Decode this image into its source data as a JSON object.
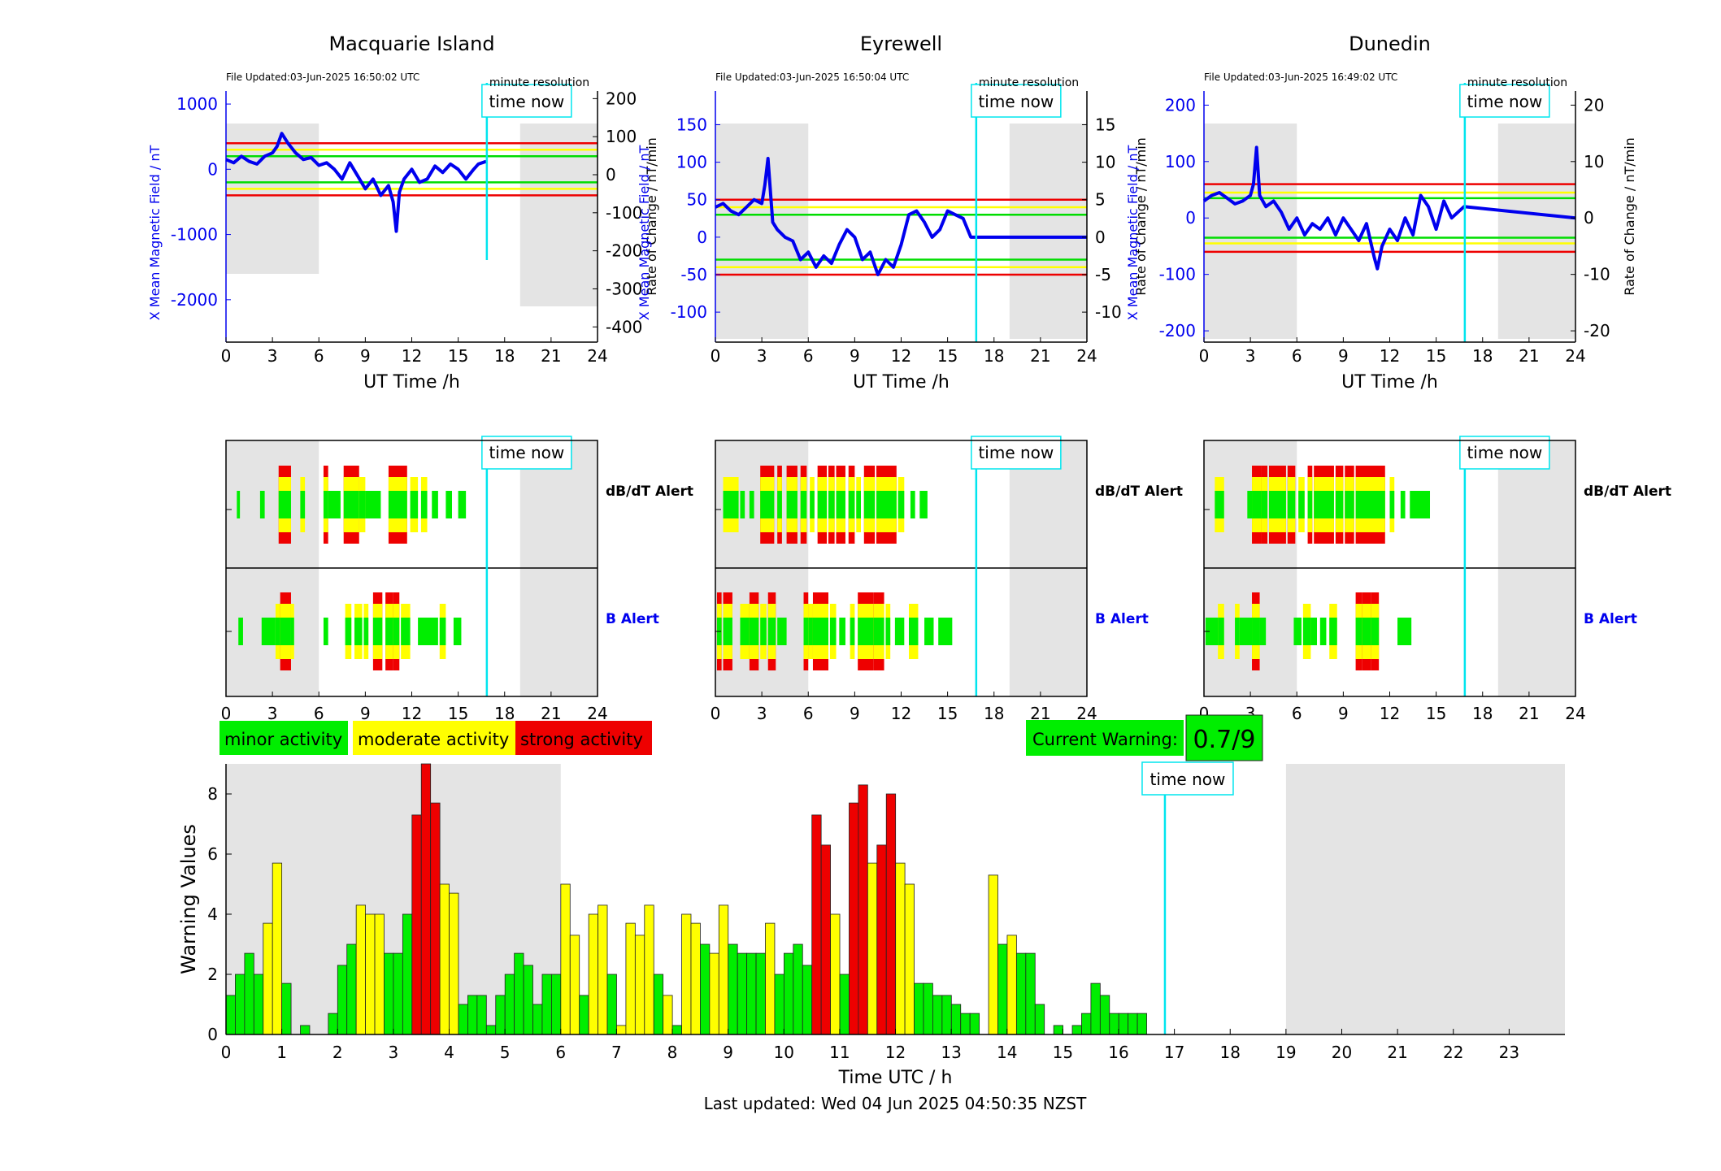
{
  "colors": {
    "minor": "#00ee00",
    "moderate": "#ffff00",
    "strong": "#ee0000",
    "field": "#0000ee",
    "time_now": "#00e5ee",
    "shade": "#e4e4e4",
    "threshold_red": "#ee0000",
    "threshold_yellow": "#ffff00",
    "threshold_green": "#00dd00"
  },
  "stations": [
    {
      "name": "Macquarie Island",
      "file_updated": "File Updated:03-Jun-2025 16:50:02 UTC",
      "resolution": "minute resolution",
      "time_now_label": "time now",
      "y_label_left": "X Mean Magnetic Field / nT",
      "y_label_right": "Rate of Change / nT/min",
      "x_label": "UT Time /h",
      "y_ticks_left": [
        "1000",
        "0",
        "-1000",
        "-2000"
      ],
      "y_ticks_right": [
        "200",
        "100",
        "0",
        "-100",
        "-200",
        "-300",
        "-400"
      ],
      "x_ticks": [
        "0",
        "3",
        "6",
        "9",
        "12",
        "15",
        "18",
        "21",
        "24"
      ],
      "left_range": [
        -2650,
        1200
      ],
      "right_range": [
        -440,
        220
      ],
      "thresholds_nt": {
        "red": 400,
        "yellow": 300,
        "green": 200
      },
      "field_series": {
        "x": [
          0,
          0.5,
          1,
          1.5,
          2,
          2.5,
          3,
          3.3,
          3.6,
          4,
          4.5,
          5,
          5.5,
          6,
          6.5,
          7,
          7.5,
          8,
          8.5,
          9,
          9.5,
          10,
          10.5,
          10.8,
          11,
          11.2,
          11.5,
          12,
          12.5,
          13,
          13.5,
          14,
          14.5,
          15,
          15.5,
          16,
          16.3,
          16.8
        ],
        "y": [
          150,
          100,
          200,
          120,
          80,
          200,
          250,
          350,
          550,
          400,
          250,
          150,
          180,
          60,
          100,
          0,
          -150,
          100,
          -100,
          -300,
          -150,
          -400,
          -250,
          -500,
          -950,
          -350,
          -150,
          0,
          -200,
          -150,
          50,
          -50,
          80,
          0,
          -150,
          0,
          80,
          120
        ]
      },
      "dbdt_alert": {
        "label": "dB/dT Alert",
        "segments": [
          [
            0.7,
            0.9,
            "minor"
          ],
          [
            2.2,
            2.5,
            "minor"
          ],
          [
            3.4,
            4.2,
            "strong"
          ],
          [
            4.8,
            5.1,
            "moderate"
          ],
          [
            6.3,
            6.6,
            "strong"
          ],
          [
            6.6,
            7.4,
            "minor"
          ],
          [
            7.6,
            8.6,
            "strong"
          ],
          [
            8.6,
            9.0,
            "moderate"
          ],
          [
            9.0,
            10.0,
            "minor"
          ],
          [
            10.5,
            11.7,
            "strong"
          ],
          [
            11.9,
            12.4,
            "moderate"
          ],
          [
            12.6,
            13.0,
            "moderate"
          ],
          [
            13.3,
            13.7,
            "minor"
          ],
          [
            14.2,
            14.6,
            "minor"
          ],
          [
            15.0,
            15.5,
            "minor"
          ]
        ]
      },
      "b_alert": {
        "label": "B Alert",
        "segments": [
          [
            0.8,
            1.1,
            "minor"
          ],
          [
            2.3,
            3.2,
            "minor"
          ],
          [
            3.2,
            3.5,
            "moderate"
          ],
          [
            3.5,
            4.2,
            "strong"
          ],
          [
            4.2,
            4.4,
            "moderate"
          ],
          [
            6.3,
            6.6,
            "minor"
          ],
          [
            7.7,
            8.1,
            "moderate"
          ],
          [
            8.3,
            8.8,
            "moderate"
          ],
          [
            8.9,
            9.2,
            "moderate"
          ],
          [
            9.5,
            10.1,
            "strong"
          ],
          [
            10.3,
            10.8,
            "strong"
          ],
          [
            10.8,
            11.2,
            "strong"
          ],
          [
            11.3,
            11.9,
            "moderate"
          ],
          [
            12.4,
            13.7,
            "minor"
          ],
          [
            13.8,
            14.2,
            "moderate"
          ],
          [
            14.7,
            15.2,
            "minor"
          ]
        ]
      }
    },
    {
      "name": "Eyrewell",
      "file_updated": "File Updated:03-Jun-2025 16:50:04 UTC",
      "resolution": "minute resolution",
      "time_now_label": "time now",
      "y_label_left": "X Mean Magnetic Field / nT",
      "y_label_right": "Rate of Change / nT/min",
      "x_label": "UT Time /h",
      "y_ticks_left": [
        "150",
        "100",
        "50",
        "0",
        "-50",
        "-100"
      ],
      "y_ticks_right": [
        "15",
        "10",
        "5",
        "0",
        "-5",
        "-10"
      ],
      "x_ticks": [
        "0",
        "3",
        "6",
        "9",
        "12",
        "15",
        "18",
        "21",
        "24"
      ],
      "left_range": [
        -140,
        195
      ],
      "right_range": [
        -14,
        19.5
      ],
      "thresholds_nt": {
        "red": 50,
        "yellow": 40,
        "green": 30
      },
      "field_series": {
        "x": [
          0,
          0.5,
          1,
          1.5,
          2,
          2.5,
          3,
          3.2,
          3.4,
          3.7,
          4,
          4.5,
          5,
          5.5,
          6,
          6.5,
          7,
          7.5,
          8,
          8.5,
          9,
          9.5,
          10,
          10.5,
          11,
          11.5,
          12,
          12.5,
          13,
          13.5,
          14,
          14.5,
          15,
          15.5,
          16,
          16.5,
          24
        ],
        "y": [
          40,
          45,
          35,
          30,
          40,
          50,
          45,
          70,
          105,
          20,
          10,
          0,
          -5,
          -30,
          -20,
          -40,
          -25,
          -35,
          -10,
          10,
          0,
          -30,
          -20,
          -50,
          -30,
          -40,
          -10,
          30,
          35,
          20,
          0,
          10,
          35,
          30,
          25,
          0,
          0
        ]
      },
      "dbdt_alert": {
        "label": "dB/dT Alert",
        "segments": [
          [
            0.5,
            1.5,
            "moderate"
          ],
          [
            1.6,
            1.9,
            "minor"
          ],
          [
            2.2,
            2.5,
            "minor"
          ],
          [
            2.9,
            3.8,
            "strong"
          ],
          [
            4.0,
            4.3,
            "strong"
          ],
          [
            4.6,
            5.3,
            "strong"
          ],
          [
            5.5,
            5.9,
            "strong"
          ],
          [
            6.1,
            6.4,
            "moderate"
          ],
          [
            6.6,
            7.2,
            "strong"
          ],
          [
            7.3,
            7.7,
            "strong"
          ],
          [
            7.8,
            8.4,
            "strong"
          ],
          [
            8.6,
            9.0,
            "strong"
          ],
          [
            9.1,
            9.4,
            "moderate"
          ],
          [
            9.6,
            10.3,
            "strong"
          ],
          [
            10.4,
            11.7,
            "strong"
          ],
          [
            11.8,
            12.2,
            "moderate"
          ],
          [
            12.6,
            12.9,
            "minor"
          ],
          [
            13.2,
            13.7,
            "minor"
          ]
        ]
      },
      "b_alert": {
        "label": "B Alert",
        "segments": [
          [
            0.1,
            0.4,
            "strong"
          ],
          [
            0.5,
            1.1,
            "strong"
          ],
          [
            1.6,
            2.2,
            "moderate"
          ],
          [
            2.2,
            2.8,
            "strong"
          ],
          [
            2.9,
            3.3,
            "moderate"
          ],
          [
            3.4,
            3.9,
            "strong"
          ],
          [
            4.0,
            4.6,
            "minor"
          ],
          [
            5.7,
            6.0,
            "strong"
          ],
          [
            6.0,
            6.3,
            "moderate"
          ],
          [
            6.3,
            7.3,
            "strong"
          ],
          [
            7.4,
            7.8,
            "moderate"
          ],
          [
            8.0,
            8.4,
            "minor"
          ],
          [
            8.7,
            9.0,
            "moderate"
          ],
          [
            9.2,
            10.2,
            "strong"
          ],
          [
            10.2,
            10.9,
            "strong"
          ],
          [
            11.0,
            11.3,
            "moderate"
          ],
          [
            11.6,
            12.2,
            "minor"
          ],
          [
            12.5,
            13.1,
            "moderate"
          ],
          [
            13.5,
            14.1,
            "minor"
          ],
          [
            14.4,
            15.3,
            "minor"
          ]
        ]
      }
    },
    {
      "name": "Dunedin",
      "file_updated": "File Updated:03-Jun-2025 16:49:02 UTC",
      "resolution": "minute resolution",
      "time_now_label": "time now",
      "y_label_left": "X Mean Magnetic Field / nT",
      "y_label_right": "Rate of Change / nT/min",
      "x_label": "UT Time /h",
      "y_ticks_left": [
        "200",
        "100",
        "0",
        "-100",
        "-200"
      ],
      "y_ticks_right": [
        "20",
        "10",
        "0",
        "-10",
        "-20"
      ],
      "x_ticks": [
        "0",
        "3",
        "6",
        "9",
        "12",
        "15",
        "18",
        "21",
        "24"
      ],
      "left_range": [
        -220,
        225
      ],
      "right_range": [
        -22,
        22.5
      ],
      "thresholds_nt": {
        "red": 60,
        "yellow": 45,
        "green": 35
      },
      "field_series": {
        "x": [
          0,
          0.5,
          1,
          1.5,
          2,
          2.5,
          3,
          3.2,
          3.4,
          3.6,
          4,
          4.5,
          5,
          5.5,
          6,
          6.5,
          7,
          7.5,
          8,
          8.5,
          9,
          9.5,
          10,
          10.5,
          11,
          11.2,
          11.5,
          12,
          12.5,
          13,
          13.5,
          14,
          14.5,
          15,
          15.5,
          16,
          16.8,
          24
        ],
        "y": [
          30,
          40,
          45,
          35,
          25,
          30,
          40,
          60,
          125,
          40,
          20,
          30,
          10,
          -20,
          0,
          -30,
          -10,
          -20,
          0,
          -30,
          0,
          -20,
          -40,
          -10,
          -70,
          -90,
          -50,
          -20,
          -40,
          0,
          -30,
          40,
          20,
          -20,
          30,
          0,
          20,
          0
        ]
      },
      "dbdt_alert": {
        "label": "dB/dT Alert",
        "segments": [
          [
            0.7,
            1.3,
            "moderate"
          ],
          [
            2.8,
            3.1,
            "minor"
          ],
          [
            3.1,
            3.7,
            "strong"
          ],
          [
            3.7,
            4.1,
            "strong"
          ],
          [
            4.2,
            5.3,
            "strong"
          ],
          [
            5.4,
            5.9,
            "strong"
          ],
          [
            6.1,
            6.5,
            "moderate"
          ],
          [
            6.7,
            7.0,
            "strong"
          ],
          [
            7.1,
            8.4,
            "strong"
          ],
          [
            8.5,
            9.0,
            "strong"
          ],
          [
            9.1,
            9.7,
            "strong"
          ],
          [
            9.8,
            11.7,
            "strong"
          ],
          [
            12.0,
            12.3,
            "moderate"
          ],
          [
            12.7,
            13.0,
            "minor"
          ],
          [
            13.3,
            14.6,
            "minor"
          ]
        ]
      },
      "b_alert": {
        "label": "B Alert",
        "segments": [
          [
            0.1,
            1.0,
            "minor"
          ],
          [
            0.9,
            1.3,
            "moderate"
          ],
          [
            2.0,
            2.3,
            "moderate"
          ],
          [
            2.3,
            3.1,
            "minor"
          ],
          [
            3.1,
            3.6,
            "strong"
          ],
          [
            3.6,
            4.0,
            "minor"
          ],
          [
            5.8,
            6.3,
            "minor"
          ],
          [
            6.4,
            6.9,
            "moderate"
          ],
          [
            6.9,
            7.3,
            "minor"
          ],
          [
            7.5,
            7.9,
            "minor"
          ],
          [
            8.1,
            8.6,
            "moderate"
          ],
          [
            9.8,
            10.2,
            "strong"
          ],
          [
            10.2,
            10.8,
            "strong"
          ],
          [
            10.8,
            11.3,
            "strong"
          ],
          [
            12.5,
            13.4,
            "minor"
          ]
        ]
      }
    }
  ],
  "legend": {
    "minor": "minor activity",
    "moderate": "moderate activity",
    "strong": "strong activity"
  },
  "current_warning": {
    "label": "Current Warning:",
    "value": "0.7/9"
  },
  "chart_data": {
    "type": "bar",
    "title": "",
    "xlabel": "Time UTC / h",
    "ylabel": "Warning Values",
    "xlim": [
      0,
      24
    ],
    "ylim": [
      0,
      9
    ],
    "x_ticks": [
      "0",
      "1",
      "2",
      "3",
      "4",
      "5",
      "6",
      "7",
      "8",
      "9",
      "10",
      "11",
      "12",
      "13",
      "14",
      "15",
      "16",
      "17",
      "18",
      "19",
      "20",
      "21",
      "22",
      "23"
    ],
    "y_ticks": [
      "0",
      "2",
      "4",
      "6",
      "8"
    ],
    "bin_width_h": 0.1667,
    "time_now_h": 16.83,
    "time_now_label": "time now",
    "shaded_ranges_h": [
      [
        0,
        6
      ],
      [
        19,
        24
      ]
    ],
    "values": [
      1.3,
      2.0,
      2.7,
      2.0,
      3.7,
      5.7,
      1.7,
      0,
      0.3,
      0,
      0,
      0.7,
      2.3,
      3.0,
      4.3,
      4.0,
      4.0,
      2.7,
      2.7,
      4.0,
      7.3,
      9.0,
      7.7,
      5.0,
      4.7,
      1.0,
      1.3,
      1.3,
      0.3,
      1.3,
      2.0,
      2.7,
      2.3,
      1.0,
      2.0,
      2.0,
      5.0,
      3.3,
      1.3,
      4.0,
      4.3,
      2.0,
      0.3,
      3.7,
      3.3,
      4.3,
      2.0,
      1.3,
      0.3,
      4.0,
      3.7,
      3.0,
      2.7,
      4.3,
      3.0,
      2.7,
      2.7,
      2.7,
      3.7,
      2.0,
      2.7,
      3.0,
      2.3,
      7.3,
      6.3,
      4.0,
      2.0,
      7.7,
      8.3,
      5.7,
      6.3,
      8.0,
      5.7,
      5.0,
      1.7,
      1.7,
      1.3,
      1.3,
      1.0,
      0.7,
      0.7,
      0,
      5.3,
      3.0,
      3.3,
      2.7,
      2.7,
      1.0,
      0,
      0.3,
      0,
      0.3,
      0.7,
      1.7,
      1.3,
      0.7,
      0.7,
      0.7,
      0.7
    ],
    "levels": [
      "minor",
      "minor",
      "minor",
      "minor",
      "moderate",
      "moderate",
      "minor",
      "minor",
      "minor",
      "minor",
      "minor",
      "minor",
      "minor",
      "minor",
      "moderate",
      "moderate",
      "moderate",
      "minor",
      "minor",
      "minor",
      "strong",
      "strong",
      "strong",
      "moderate",
      "moderate",
      "minor",
      "minor",
      "minor",
      "minor",
      "minor",
      "minor",
      "minor",
      "minor",
      "minor",
      "minor",
      "minor",
      "moderate",
      "moderate",
      "minor",
      "moderate",
      "moderate",
      "minor",
      "moderate",
      "moderate",
      "moderate",
      "moderate",
      "minor",
      "moderate",
      "minor",
      "moderate",
      "moderate",
      "minor",
      "moderate",
      "moderate",
      "minor",
      "minor",
      "minor",
      "minor",
      "moderate",
      "minor",
      "minor",
      "minor",
      "minor",
      "strong",
      "strong",
      "moderate",
      "minor",
      "strong",
      "strong",
      "moderate",
      "strong",
      "strong",
      "moderate",
      "moderate",
      "minor",
      "minor",
      "minor",
      "minor",
      "minor",
      "minor",
      "minor",
      "minor",
      "moderate",
      "minor",
      "moderate",
      "minor",
      "minor",
      "minor",
      "minor",
      "minor",
      "minor",
      "minor",
      "minor",
      "minor",
      "minor",
      "minor",
      "minor",
      "minor",
      "minor"
    ]
  },
  "footer": {
    "last_updated": "Last updated: Wed 04 Jun 2025 04:50:35 NZST"
  }
}
